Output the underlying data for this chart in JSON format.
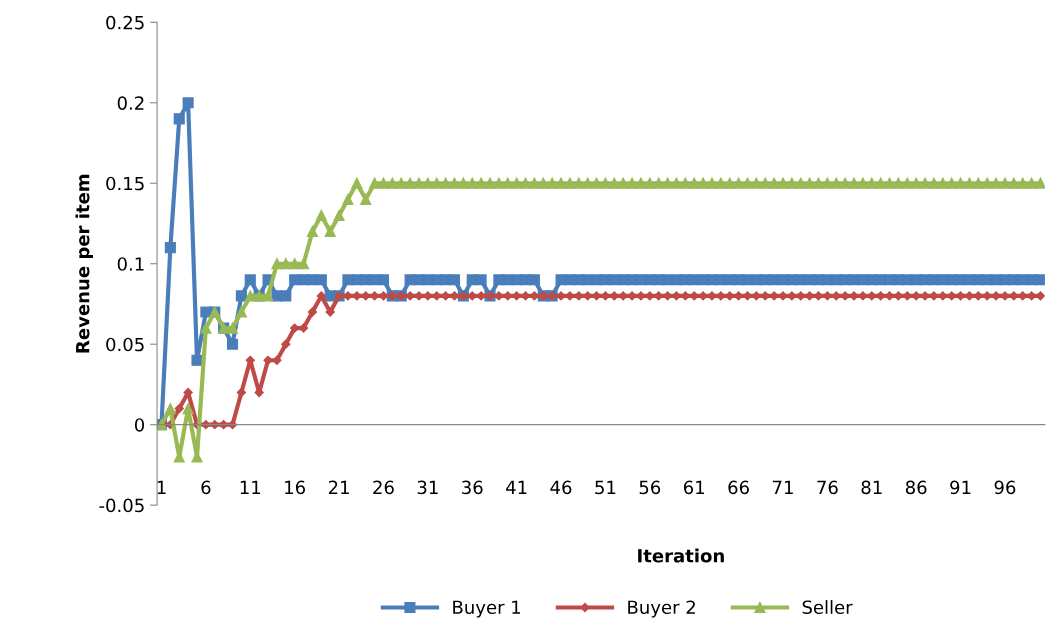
{
  "chart_data": {
    "type": "line",
    "xlabel": "Iteration",
    "ylabel": "Revenue per item",
    "categories": [
      "1",
      null,
      null,
      null,
      null,
      "6",
      null,
      null,
      null,
      null,
      "11",
      null,
      null,
      null,
      null,
      "16",
      null,
      null,
      null,
      null,
      "21",
      null,
      null,
      null,
      null,
      "26",
      null,
      null,
      null,
      null,
      "31",
      null,
      null,
      null,
      null,
      "36",
      null,
      null,
      null,
      null,
      "41",
      null,
      null,
      null,
      null,
      "46",
      null,
      null,
      null,
      null,
      "51",
      null,
      null,
      null,
      null,
      "56",
      null,
      null,
      null,
      null,
      "61",
      null,
      null,
      null,
      null,
      "66",
      null,
      null,
      null,
      null,
      "71",
      null,
      null,
      null,
      null,
      "76",
      null,
      null,
      null,
      null,
      "81",
      null,
      null,
      null,
      null,
      "86",
      null,
      null,
      null,
      null,
      "91",
      null,
      null,
      null,
      null,
      "96",
      null,
      null,
      null,
      null
    ],
    "series": [
      {
        "name": "Buyer 1",
        "color": "#4a7ebb",
        "marker": "square",
        "values": [
          0,
          0.11,
          0.19,
          0.2,
          0.04,
          0.07,
          0.07,
          0.06,
          0.05,
          0.08,
          0.09,
          0.08,
          0.09,
          0.08,
          0.08,
          0.09,
          0.09,
          0.09,
          0.09,
          0.08,
          0.08,
          0.09,
          0.09,
          0.09,
          0.09,
          0.09,
          0.08,
          0.08,
          0.09,
          0.09,
          0.09,
          0.09,
          0.09,
          0.09,
          0.08,
          0.09,
          0.09,
          0.08,
          0.09,
          0.09,
          0.09,
          0.09,
          0.09,
          0.08,
          0.08,
          0.09,
          0.09,
          0.09,
          0.09,
          0.09,
          0.09,
          0.09,
          0.09,
          0.09,
          0.09,
          0.09,
          0.09,
          0.09,
          0.09,
          0.09,
          0.09,
          0.09,
          0.09,
          0.09,
          0.09,
          0.09,
          0.09,
          0.09,
          0.09,
          0.09,
          0.09,
          0.09,
          0.09,
          0.09,
          0.09,
          0.09,
          0.09,
          0.09,
          0.09,
          0.09,
          0.09,
          0.09,
          0.09,
          0.09,
          0.09,
          0.09,
          0.09,
          0.09,
          0.09,
          0.09,
          0.09,
          0.09,
          0.09,
          0.09,
          0.09,
          0.09,
          0.09,
          0.09,
          0.09,
          0.09
        ]
      },
      {
        "name": "Buyer 2",
        "color": "#be4b48",
        "marker": "diamond",
        "values": [
          0,
          0,
          0.01,
          0.02,
          0,
          0,
          0,
          0,
          0,
          0.02,
          0.04,
          0.02,
          0.04,
          0.04,
          0.05,
          0.06,
          0.06,
          0.07,
          0.08,
          0.07,
          0.08,
          0.08,
          0.08,
          0.08,
          0.08,
          0.08,
          0.08,
          0.08,
          0.08,
          0.08,
          0.08,
          0.08,
          0.08,
          0.08,
          0.08,
          0.08,
          0.08,
          0.08,
          0.08,
          0.08,
          0.08,
          0.08,
          0.08,
          0.08,
          0.08,
          0.08,
          0.08,
          0.08,
          0.08,
          0.08,
          0.08,
          0.08,
          0.08,
          0.08,
          0.08,
          0.08,
          0.08,
          0.08,
          0.08,
          0.08,
          0.08,
          0.08,
          0.08,
          0.08,
          0.08,
          0.08,
          0.08,
          0.08,
          0.08,
          0.08,
          0.08,
          0.08,
          0.08,
          0.08,
          0.08,
          0.08,
          0.08,
          0.08,
          0.08,
          0.08,
          0.08,
          0.08,
          0.08,
          0.08,
          0.08,
          0.08,
          0.08,
          0.08,
          0.08,
          0.08,
          0.08,
          0.08,
          0.08,
          0.08,
          0.08,
          0.08,
          0.08,
          0.08,
          0.08,
          0.08
        ]
      },
      {
        "name": "Seller",
        "color": "#98b954",
        "marker": "triangle",
        "values": [
          0,
          0.01,
          -0.02,
          0.01,
          -0.02,
          0.06,
          0.07,
          0.06,
          0.06,
          0.07,
          0.08,
          0.08,
          0.08,
          0.1,
          0.1,
          0.1,
          0.1,
          0.12,
          0.13,
          0.12,
          0.13,
          0.14,
          0.15,
          0.14,
          0.15,
          0.15,
          0.15,
          0.15,
          0.15,
          0.15,
          0.15,
          0.15,
          0.15,
          0.15,
          0.15,
          0.15,
          0.15,
          0.15,
          0.15,
          0.15,
          0.15,
          0.15,
          0.15,
          0.15,
          0.15,
          0.15,
          0.15,
          0.15,
          0.15,
          0.15,
          0.15,
          0.15,
          0.15,
          0.15,
          0.15,
          0.15,
          0.15,
          0.15,
          0.15,
          0.15,
          0.15,
          0.15,
          0.15,
          0.15,
          0.15,
          0.15,
          0.15,
          0.15,
          0.15,
          0.15,
          0.15,
          0.15,
          0.15,
          0.15,
          0.15,
          0.15,
          0.15,
          0.15,
          0.15,
          0.15,
          0.15,
          0.15,
          0.15,
          0.15,
          0.15,
          0.15,
          0.15,
          0.15,
          0.15,
          0.15,
          0.15,
          0.15,
          0.15,
          0.15,
          0.15,
          0.15,
          0.15,
          0.15,
          0.15,
          0.15
        ]
      }
    ],
    "ylim": [
      -0.05,
      0.25
    ],
    "yticks": [
      -0.05,
      0,
      0.05,
      0.1,
      0.15,
      0.2,
      0.25
    ],
    "legend": "bottom"
  }
}
